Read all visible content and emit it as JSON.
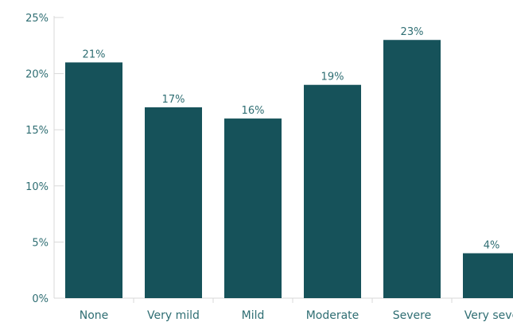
{
  "chart_data": {
    "type": "bar",
    "title": "",
    "xlabel": "",
    "ylabel": "",
    "categories": [
      "None",
      "Very mild",
      "Mild",
      "Moderate",
      "Severe",
      "Very seve"
    ],
    "values": [
      21,
      17,
      16,
      19,
      23,
      4
    ],
    "value_labels": [
      "21%",
      "17%",
      "16%",
      "19%",
      "23%",
      "4%"
    ],
    "ylim": [
      0,
      25
    ],
    "yticks": [
      0,
      5,
      10,
      15,
      20,
      25
    ],
    "ytick_labels": [
      "0%",
      "5%",
      "10%",
      "15%",
      "20%",
      "25%"
    ],
    "grid": false,
    "bar_color": "#16525a"
  }
}
